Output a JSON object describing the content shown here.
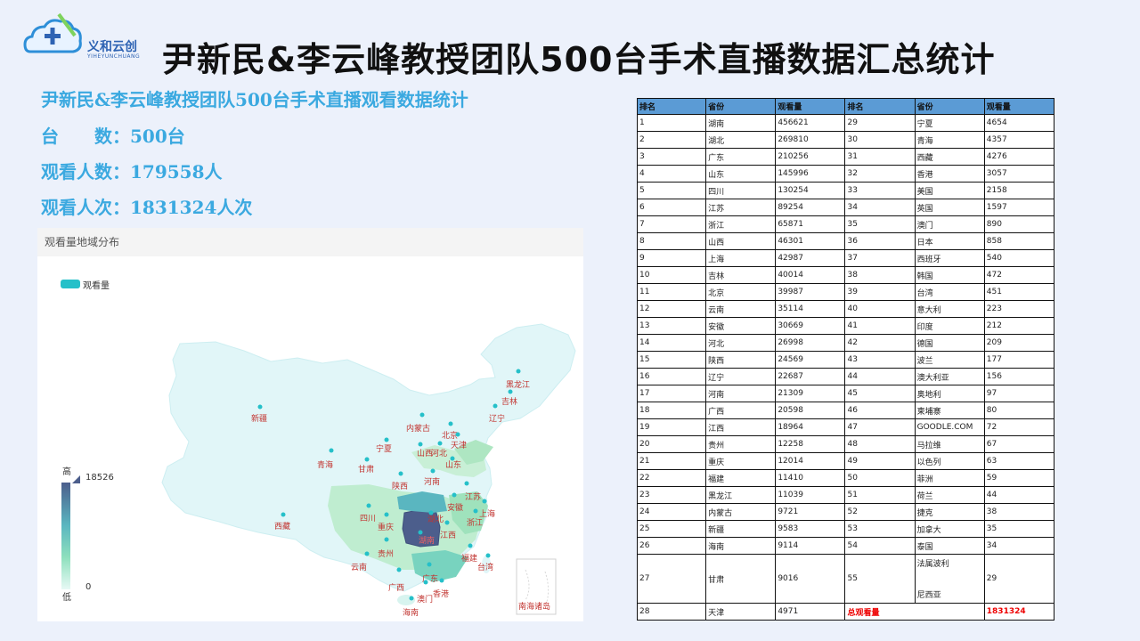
{
  "logo": {
    "brand": "义和云创",
    "sub": "YIHEYUNCHUANG"
  },
  "title": "尹新民&李云峰教授团队500台手术直播数据汇总统计",
  "stats": {
    "heading": "尹新民&李云峰教授团队500台手术直播观看数据统计",
    "line1": "台　　数：500台",
    "line2": "观看人数：179558人",
    "line3": "观看人次：1831324人次"
  },
  "map": {
    "panel_title": "观看量地域分布",
    "legend_label": "观看量",
    "visual_map": {
      "high": "高",
      "low": "低",
      "max": "18526",
      "min": "0"
    },
    "inset_label": "南海诸岛",
    "province_labels": [
      "黑龙江",
      "吉林",
      "辽宁",
      "内蒙古",
      "北京",
      "天津",
      "河北",
      "山西",
      "宁夏",
      "新疆",
      "青海",
      "甘肃",
      "陕西",
      "河南",
      "山东",
      "江苏",
      "安徽",
      "上海",
      "浙江",
      "湖北",
      "四川",
      "重庆",
      "西藏",
      "湖南",
      "江西",
      "贵州",
      "福建",
      "台湾",
      "云南",
      "广西",
      "广东",
      "香港",
      "澳门",
      "海南"
    ],
    "colors": {
      "highest": "#4c5e8c",
      "base": "#dff6f7",
      "mid": "#bfeecf",
      "point": "#25c0c9",
      "label": "#c23531"
    }
  },
  "table": {
    "headers": [
      "排名",
      "省份",
      "观看量",
      "排名",
      "省份",
      "观看量"
    ],
    "rows": [
      [
        "1",
        "湖南",
        "456621",
        "29",
        "宁夏",
        "4654"
      ],
      [
        "2",
        "湖北",
        "269810",
        "30",
        "青海",
        "4357"
      ],
      [
        "3",
        "广东",
        "210256",
        "31",
        "西藏",
        "4276"
      ],
      [
        "4",
        "山东",
        "145996",
        "32",
        "香港",
        "3057"
      ],
      [
        "5",
        "四川",
        "130254",
        "33",
        "美国",
        "2158"
      ],
      [
        "6",
        "江苏",
        "89254",
        "34",
        "英国",
        "1597"
      ],
      [
        "7",
        "浙江",
        "65871",
        "35",
        "澳门",
        "890"
      ],
      [
        "8",
        "山西",
        "46301",
        "36",
        "日本",
        "858"
      ],
      [
        "9",
        "上海",
        "42987",
        "37",
        "西班牙",
        "540"
      ],
      [
        "10",
        "吉林",
        "40014",
        "38",
        "韩国",
        "472"
      ],
      [
        "11",
        "北京",
        "39987",
        "39",
        "台湾",
        "451"
      ],
      [
        "12",
        "云南",
        "35114",
        "40",
        "意大利",
        "223"
      ],
      [
        "13",
        "安徽",
        "30669",
        "41",
        "印度",
        "212"
      ],
      [
        "14",
        "河北",
        "26998",
        "42",
        "德国",
        "209"
      ],
      [
        "15",
        "陕西",
        "24569",
        "43",
        "波兰",
        "177"
      ],
      [
        "16",
        "辽宁",
        "22687",
        "44",
        "澳大利亚",
        "156"
      ],
      [
        "17",
        "河南",
        "21309",
        "45",
        "奥地利",
        "97"
      ],
      [
        "18",
        "广西",
        "20598",
        "46",
        "柬埔寨",
        "80"
      ],
      [
        "19",
        "江西",
        "18964",
        "47",
        "GOODLE.COM",
        "72"
      ],
      [
        "20",
        "贵州",
        "12258",
        "48",
        "马拉维",
        "67"
      ],
      [
        "21",
        "重庆",
        "12014",
        "49",
        "以色列",
        "63"
      ],
      [
        "22",
        "福建",
        "11410",
        "50",
        "菲洲",
        "59"
      ],
      [
        "23",
        "黑龙江",
        "11039",
        "51",
        "荷兰",
        "44"
      ],
      [
        "24",
        "内蒙古",
        "9721",
        "52",
        "捷克",
        "38"
      ],
      [
        "25",
        "新疆",
        "9583",
        "53",
        "加拿大",
        "35"
      ],
      [
        "26",
        "海南",
        "9114",
        "54",
        "泰国",
        "34"
      ]
    ],
    "tall_row": [
      "27",
      "甘肃",
      "9016",
      "55",
      "法属波利",
      "尼西亚",
      "29"
    ],
    "last_row": [
      "28",
      "天津",
      "4971",
      "总观看量",
      "1831324"
    ]
  }
}
